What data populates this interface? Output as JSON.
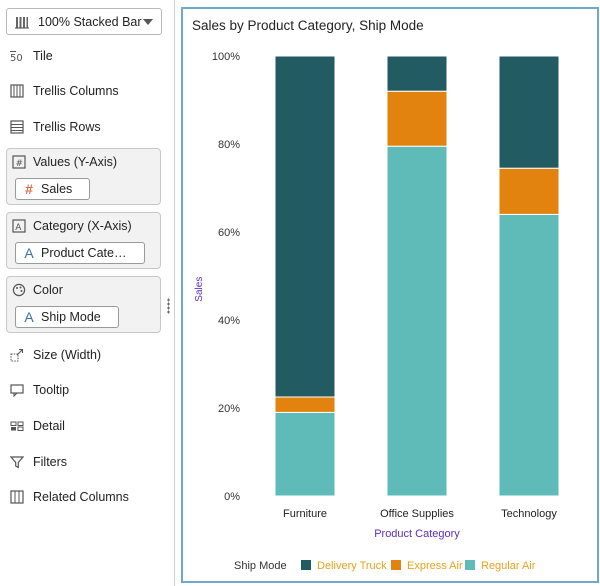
{
  "sidebar": {
    "chart_type": {
      "label": "100% Stacked Bar",
      "icon": "stacked-bar-icon"
    },
    "tile": {
      "label": "Tile",
      "icon": "tile-icon"
    },
    "trellis_columns": {
      "label": "Trellis Columns",
      "icon": "trellis-columns-icon"
    },
    "trellis_rows": {
      "label": "Trellis Rows",
      "icon": "trellis-rows-icon"
    },
    "values": {
      "label": "Values (Y-Axis)",
      "icon": "values-axis-icon",
      "pill": "Sales"
    },
    "category": {
      "label": "Category (X-Axis)",
      "icon": "category-axis-icon",
      "pill": "Product Cate…"
    },
    "color": {
      "label": "Color",
      "icon": "palette-icon",
      "pill": "Ship Mode"
    },
    "size": {
      "label": "Size (Width)",
      "icon": "size-icon"
    },
    "tooltip": {
      "label": "Tooltip",
      "icon": "tooltip-icon"
    },
    "detail": {
      "label": "Detail",
      "icon": "detail-icon"
    },
    "filters": {
      "label": "Filters",
      "icon": "filter-icon"
    },
    "related_columns": {
      "label": "Related Columns",
      "icon": "related-columns-icon"
    }
  },
  "chart_data": {
    "type": "bar",
    "stacked": "percent",
    "title": "Sales by Product Category, Ship Mode",
    "xlabel": "Product Category",
    "ylabel": "Sales",
    "ylim": [
      0,
      100
    ],
    "yticks": [
      "0%",
      "20%",
      "40%",
      "60%",
      "80%",
      "100%"
    ],
    "categories": [
      "Furniture",
      "Office Supplies",
      "Technology"
    ],
    "series": [
      {
        "name": "Regular Air",
        "color": "#5fbbb7",
        "values": [
          19,
          79.5,
          64
        ]
      },
      {
        "name": "Express Air",
        "color": "#e2830f",
        "values": [
          3.5,
          12.5,
          10.5
        ]
      },
      {
        "name": "Delivery Truck",
        "color": "#235b63",
        "values": [
          77.5,
          8,
          25.5
        ]
      }
    ],
    "legend": {
      "title": "Ship Mode",
      "position": "bottom",
      "order": [
        "Delivery Truck",
        "Express Air",
        "Regular Air"
      ],
      "text_color": "#e8a21a"
    },
    "axis_label_color": "#5a2fc0",
    "grid": false
  }
}
